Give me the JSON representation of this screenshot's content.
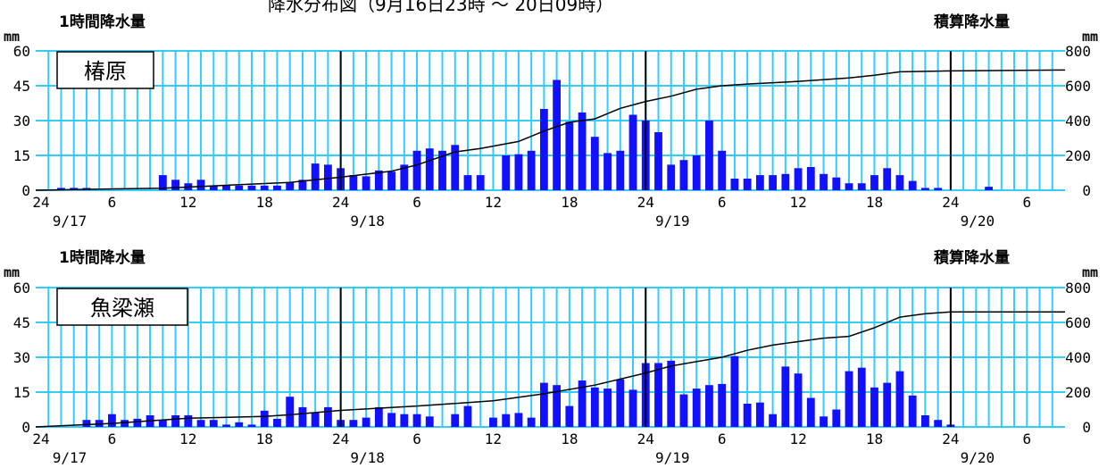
{
  "header_title": "降水分布図（9月16日23時 ～ 20日09時）",
  "colors": {
    "background": "#ffffff",
    "plot_background": "#ffffff",
    "grid": "#33ccff",
    "bar": "#1111ff",
    "cumulative_line": "#000000",
    "day_line": "#000000",
    "text": "#000000"
  },
  "chart_data": [
    {
      "type": "bar",
      "station": "椿原",
      "left_axis_label": "1時間降水量",
      "right_axis_label": "積算降水量",
      "left_unit": "mm",
      "right_unit": "mm",
      "ylim_left": [
        0,
        60
      ],
      "ylim_right": [
        0,
        800
      ],
      "yticks_left": [
        "0",
        "15",
        "30",
        "45",
        "60"
      ],
      "yticks_right": [
        "0",
        "200",
        "400",
        "600",
        "800"
      ],
      "grid": true,
      "xticks": [
        {
          "hour": 0,
          "label": "24"
        },
        {
          "hour": 6,
          "label": "6"
        },
        {
          "hour": 12,
          "label": "12"
        },
        {
          "hour": 18,
          "label": "18"
        },
        {
          "hour": 24,
          "label": "24"
        },
        {
          "hour": 30,
          "label": "6"
        },
        {
          "hour": 36,
          "label": "12"
        },
        {
          "hour": 42,
          "label": "18"
        },
        {
          "hour": 48,
          "label": "24"
        },
        {
          "hour": 54,
          "label": "6"
        },
        {
          "hour": 60,
          "label": "12"
        },
        {
          "hour": 66,
          "label": "18"
        },
        {
          "hour": 72,
          "label": "24"
        },
        {
          "hour": 78,
          "label": "6"
        }
      ],
      "date_labels": [
        {
          "hour": 0,
          "label": "9/17"
        },
        {
          "hour": 24,
          "label": "9/18"
        },
        {
          "hour": 48,
          "label": "9/19"
        },
        {
          "hour": 72,
          "label": "9/20"
        }
      ],
      "day_boundaries": [
        24,
        48,
        72
      ],
      "bars": [
        {
          "hour": 2,
          "value": 1
        },
        {
          "hour": 3,
          "value": 1
        },
        {
          "hour": 4,
          "value": 1
        },
        {
          "hour": 10,
          "value": 6.5
        },
        {
          "hour": 11,
          "value": 4.5
        },
        {
          "hour": 12,
          "value": 3
        },
        {
          "hour": 13,
          "value": 4.5
        },
        {
          "hour": 14,
          "value": 2
        },
        {
          "hour": 15,
          "value": 2
        },
        {
          "hour": 16,
          "value": 2
        },
        {
          "hour": 17,
          "value": 2
        },
        {
          "hour": 18,
          "value": 2
        },
        {
          "hour": 19,
          "value": 2
        },
        {
          "hour": 20,
          "value": 3.5
        },
        {
          "hour": 21,
          "value": 4.5
        },
        {
          "hour": 22,
          "value": 11.5
        },
        {
          "hour": 23,
          "value": 11
        },
        {
          "hour": 24,
          "value": 9.5
        },
        {
          "hour": 25,
          "value": 6.5
        },
        {
          "hour": 26,
          "value": 6
        },
        {
          "hour": 27,
          "value": 8.5
        },
        {
          "hour": 28,
          "value": 8
        },
        {
          "hour": 29,
          "value": 11
        },
        {
          "hour": 30,
          "value": 17
        },
        {
          "hour": 31,
          "value": 18
        },
        {
          "hour": 32,
          "value": 17
        },
        {
          "hour": 33,
          "value": 19.5
        },
        {
          "hour": 34,
          "value": 6.5
        },
        {
          "hour": 35,
          "value": 6.5
        },
        {
          "hour": 37,
          "value": 15
        },
        {
          "hour": 38,
          "value": 15.5
        },
        {
          "hour": 39,
          "value": 17
        },
        {
          "hour": 40,
          "value": 35
        },
        {
          "hour": 41,
          "value": 47.5
        },
        {
          "hour": 42,
          "value": 29.5
        },
        {
          "hour": 43,
          "value": 33.5
        },
        {
          "hour": 44,
          "value": 23
        },
        {
          "hour": 45,
          "value": 16
        },
        {
          "hour": 46,
          "value": 17
        },
        {
          "hour": 47,
          "value": 32.5
        },
        {
          "hour": 48,
          "value": 30
        },
        {
          "hour": 49,
          "value": 25
        },
        {
          "hour": 50,
          "value": 11
        },
        {
          "hour": 51,
          "value": 13
        },
        {
          "hour": 52,
          "value": 15
        },
        {
          "hour": 53,
          "value": 30
        },
        {
          "hour": 54,
          "value": 17
        },
        {
          "hour": 55,
          "value": 5
        },
        {
          "hour": 56,
          "value": 5
        },
        {
          "hour": 57,
          "value": 6.5
        },
        {
          "hour": 58,
          "value": 6.5
        },
        {
          "hour": 59,
          "value": 7
        },
        {
          "hour": 60,
          "value": 9.5
        },
        {
          "hour": 61,
          "value": 10
        },
        {
          "hour": 62,
          "value": 7
        },
        {
          "hour": 63,
          "value": 5.5
        },
        {
          "hour": 64,
          "value": 3
        },
        {
          "hour": 65,
          "value": 3
        },
        {
          "hour": 66,
          "value": 6.5
        },
        {
          "hour": 67,
          "value": 9.5
        },
        {
          "hour": 68,
          "value": 6.5
        },
        {
          "hour": 69,
          "value": 4
        },
        {
          "hour": 70,
          "value": 1
        },
        {
          "hour": 71,
          "value": 1
        },
        {
          "hour": 75,
          "value": 1.5
        }
      ],
      "cumulative": [
        {
          "hour": 0,
          "value": 0
        },
        {
          "hour": 4,
          "value": 5
        },
        {
          "hour": 10,
          "value": 12
        },
        {
          "hour": 14,
          "value": 25
        },
        {
          "hour": 20,
          "value": 45
        },
        {
          "hour": 24,
          "value": 75
        },
        {
          "hour": 28,
          "value": 110
        },
        {
          "hour": 30,
          "value": 145
        },
        {
          "hour": 33,
          "value": 220
        },
        {
          "hour": 35,
          "value": 240
        },
        {
          "hour": 38,
          "value": 280
        },
        {
          "hour": 40,
          "value": 340
        },
        {
          "hour": 42,
          "value": 390
        },
        {
          "hour": 44,
          "value": 410
        },
        {
          "hour": 46,
          "value": 470
        },
        {
          "hour": 48,
          "value": 510
        },
        {
          "hour": 50,
          "value": 540
        },
        {
          "hour": 52,
          "value": 580
        },
        {
          "hour": 54,
          "value": 600
        },
        {
          "hour": 56,
          "value": 610
        },
        {
          "hour": 60,
          "value": 625
        },
        {
          "hour": 64,
          "value": 645
        },
        {
          "hour": 66,
          "value": 660
        },
        {
          "hour": 68,
          "value": 680
        },
        {
          "hour": 72,
          "value": 685
        },
        {
          "hour": 81,
          "value": 690
        }
      ]
    },
    {
      "type": "bar",
      "station": "魚梁瀬",
      "left_axis_label": "1時間降水量",
      "right_axis_label": "積算降水量",
      "left_unit": "mm",
      "right_unit": "mm",
      "ylim_left": [
        0,
        60
      ],
      "ylim_right": [
        0,
        800
      ],
      "yticks_left": [
        "0",
        "15",
        "30",
        "45",
        "60"
      ],
      "yticks_right": [
        "0",
        "200",
        "400",
        "600",
        "800"
      ],
      "grid": true,
      "xticks": [
        {
          "hour": 0,
          "label": "24"
        },
        {
          "hour": 6,
          "label": "6"
        },
        {
          "hour": 12,
          "label": "12"
        },
        {
          "hour": 18,
          "label": "18"
        },
        {
          "hour": 24,
          "label": "24"
        },
        {
          "hour": 30,
          "label": "6"
        },
        {
          "hour": 36,
          "label": "12"
        },
        {
          "hour": 42,
          "label": "18"
        },
        {
          "hour": 48,
          "label": "24"
        },
        {
          "hour": 54,
          "label": "6"
        },
        {
          "hour": 60,
          "label": "12"
        },
        {
          "hour": 66,
          "label": "18"
        },
        {
          "hour": 72,
          "label": "24"
        },
        {
          "hour": 78,
          "label": "6"
        }
      ],
      "date_labels": [
        {
          "hour": 0,
          "label": "9/17"
        },
        {
          "hour": 24,
          "label": "9/18"
        },
        {
          "hour": 48,
          "label": "9/19"
        },
        {
          "hour": 72,
          "label": "9/20"
        }
      ],
      "day_boundaries": [
        24,
        48,
        72
      ],
      "bars": [
        {
          "hour": 4,
          "value": 3
        },
        {
          "hour": 5,
          "value": 3
        },
        {
          "hour": 6,
          "value": 5.5
        },
        {
          "hour": 7,
          "value": 3
        },
        {
          "hour": 8,
          "value": 3.5
        },
        {
          "hour": 9,
          "value": 5
        },
        {
          "hour": 10,
          "value": 3
        },
        {
          "hour": 11,
          "value": 5
        },
        {
          "hour": 12,
          "value": 5
        },
        {
          "hour": 13,
          "value": 3
        },
        {
          "hour": 14,
          "value": 3
        },
        {
          "hour": 15,
          "value": 1
        },
        {
          "hour": 16,
          "value": 2
        },
        {
          "hour": 17,
          "value": 1
        },
        {
          "hour": 18,
          "value": 7
        },
        {
          "hour": 19,
          "value": 3.5
        },
        {
          "hour": 20,
          "value": 13
        },
        {
          "hour": 21,
          "value": 8.5
        },
        {
          "hour": 22,
          "value": 6
        },
        {
          "hour": 23,
          "value": 8.5
        },
        {
          "hour": 24,
          "value": 3
        },
        {
          "hour": 25,
          "value": 3
        },
        {
          "hour": 26,
          "value": 4
        },
        {
          "hour": 27,
          "value": 8.5
        },
        {
          "hour": 28,
          "value": 6
        },
        {
          "hour": 29,
          "value": 5.5
        },
        {
          "hour": 30,
          "value": 5.5
        },
        {
          "hour": 31,
          "value": 4.5
        },
        {
          "hour": 33,
          "value": 5.5
        },
        {
          "hour": 34,
          "value": 9
        },
        {
          "hour": 36,
          "value": 4
        },
        {
          "hour": 37,
          "value": 5.5
        },
        {
          "hour": 38,
          "value": 6
        },
        {
          "hour": 39,
          "value": 4
        },
        {
          "hour": 40,
          "value": 19
        },
        {
          "hour": 41,
          "value": 18
        },
        {
          "hour": 42,
          "value": 9
        },
        {
          "hour": 43,
          "value": 20
        },
        {
          "hour": 44,
          "value": 17
        },
        {
          "hour": 45,
          "value": 16.5
        },
        {
          "hour": 46,
          "value": 20.5
        },
        {
          "hour": 47,
          "value": 16
        },
        {
          "hour": 48,
          "value": 27.5
        },
        {
          "hour": 49,
          "value": 27.5
        },
        {
          "hour": 50,
          "value": 28.5
        },
        {
          "hour": 51,
          "value": 14
        },
        {
          "hour": 52,
          "value": 16.5
        },
        {
          "hour": 53,
          "value": 18
        },
        {
          "hour": 54,
          "value": 18.5
        },
        {
          "hour": 55,
          "value": 30.5
        },
        {
          "hour": 56,
          "value": 10
        },
        {
          "hour": 57,
          "value": 10.5
        },
        {
          "hour": 58,
          "value": 5.5
        },
        {
          "hour": 59,
          "value": 26
        },
        {
          "hour": 60,
          "value": 23
        },
        {
          "hour": 61,
          "value": 12.5
        },
        {
          "hour": 62,
          "value": 4.5
        },
        {
          "hour": 63,
          "value": 7.5
        },
        {
          "hour": 64,
          "value": 24
        },
        {
          "hour": 65,
          "value": 25.5
        },
        {
          "hour": 66,
          "value": 17
        },
        {
          "hour": 67,
          "value": 19
        },
        {
          "hour": 68,
          "value": 24
        },
        {
          "hour": 69,
          "value": 13.5
        },
        {
          "hour": 70,
          "value": 5
        },
        {
          "hour": 71,
          "value": 3
        },
        {
          "hour": 72,
          "value": 1
        }
      ],
      "cumulative": [
        {
          "hour": 0,
          "value": 0
        },
        {
          "hour": 6,
          "value": 20
        },
        {
          "hour": 12,
          "value": 50
        },
        {
          "hour": 18,
          "value": 60
        },
        {
          "hour": 20,
          "value": 70
        },
        {
          "hour": 24,
          "value": 95
        },
        {
          "hour": 30,
          "value": 120
        },
        {
          "hour": 36,
          "value": 150
        },
        {
          "hour": 40,
          "value": 190
        },
        {
          "hour": 44,
          "value": 240
        },
        {
          "hour": 48,
          "value": 310
        },
        {
          "hour": 50,
          "value": 350
        },
        {
          "hour": 54,
          "value": 400
        },
        {
          "hour": 56,
          "value": 440
        },
        {
          "hour": 58,
          "value": 470
        },
        {
          "hour": 62,
          "value": 510
        },
        {
          "hour": 64,
          "value": 520
        },
        {
          "hour": 66,
          "value": 570
        },
        {
          "hour": 68,
          "value": 630
        },
        {
          "hour": 70,
          "value": 650
        },
        {
          "hour": 72,
          "value": 660
        },
        {
          "hour": 81,
          "value": 660
        }
      ]
    }
  ]
}
